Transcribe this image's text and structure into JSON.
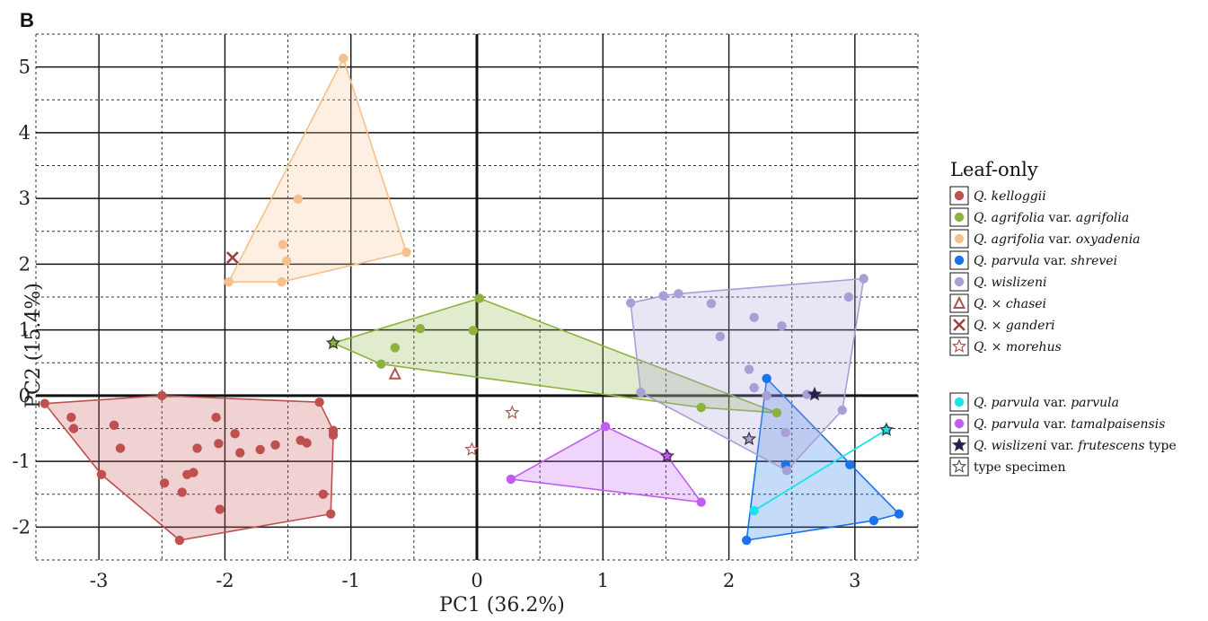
{
  "chart_data": {
    "type": "scatter",
    "panel_label": "B",
    "xlabel": "PC1 (36.2%)",
    "ylabel": "PC2 (15.4%)",
    "xlim": [
      -3.5,
      3.5
    ],
    "ylim": [
      -2.5,
      5.5
    ],
    "xticks": [
      -3,
      -2,
      -1,
      0,
      1,
      2,
      3
    ],
    "yticks": [
      -2,
      -1,
      0,
      1,
      2,
      3,
      4,
      5
    ],
    "xtick_labels": [
      "-3",
      "-2",
      "-1",
      "0",
      "1",
      "2",
      "3"
    ],
    "ytick_labels": [
      "-2",
      "-1",
      "0",
      "1",
      "2",
      "3",
      "4",
      "5"
    ],
    "legend": {
      "title": "Leaf-only",
      "groups": [
        [
          {
            "id": "kelloggii",
            "parts": [
              [
                "Q. kelloggii",
                "i"
              ]
            ],
            "color": "#c0504d",
            "marker": "circle"
          },
          {
            "id": "agrifolia",
            "parts": [
              [
                "Q. agrifolia",
                "i"
              ],
              [
                " var. ",
                "n"
              ],
              [
                "agrifolia",
                "i"
              ]
            ],
            "color": "#8db33e",
            "marker": "circle"
          },
          {
            "id": "oxyadenia",
            "parts": [
              [
                "Q. agrifolia",
                "i"
              ],
              [
                " var. ",
                "n"
              ],
              [
                "oxyadenia",
                "i"
              ]
            ],
            "color": "#f6c08c",
            "marker": "circle"
          },
          {
            "id": "shrevei",
            "parts": [
              [
                "Q. parvula",
                "i"
              ],
              [
                " var. ",
                "n"
              ],
              [
                "shrevei",
                "i"
              ]
            ],
            "color": "#1a73e8",
            "marker": "circle"
          },
          {
            "id": "wislizeni",
            "parts": [
              [
                "Q. wislizeni",
                "i"
              ]
            ],
            "color": "#a89fd6",
            "marker": "circle"
          },
          {
            "id": "chasei",
            "parts": [
              [
                "Q. × ",
                "i"
              ],
              [
                "chasei",
                "i"
              ]
            ],
            "color": "#b0554f",
            "marker": "triangle"
          },
          {
            "id": "ganderi",
            "parts": [
              [
                "Q. × ",
                "i"
              ],
              [
                "ganderi",
                "i"
              ]
            ],
            "color": "#a0403b",
            "marker": "cross"
          },
          {
            "id": "morehus",
            "parts": [
              [
                "Q. × ",
                "i"
              ],
              [
                "morehus",
                "i"
              ]
            ],
            "color": "#b0554f",
            "marker": "star-outline"
          }
        ],
        [
          {
            "id": "parvula",
            "parts": [
              [
                "Q. parvula",
                "i"
              ],
              [
                " var. ",
                "n"
              ],
              [
                "parvula",
                "i"
              ]
            ],
            "color": "#18e3ea",
            "marker": "circle"
          },
          {
            "id": "tamalpaisensis",
            "parts": [
              [
                "Q. parvula",
                "i"
              ],
              [
                " var. ",
                "n"
              ],
              [
                "tamalpaisensis",
                "i"
              ]
            ],
            "color": "#c25cf2",
            "marker": "circle"
          },
          {
            "id": "frutescens",
            "parts": [
              [
                "Q. wislizeni",
                "i"
              ],
              [
                " var. ",
                "n"
              ],
              [
                "frutescens",
                "i"
              ],
              [
                " type",
                "n"
              ]
            ],
            "color": "#2e1466",
            "marker": "star-filled"
          },
          {
            "id": "type",
            "parts": [
              [
                "type specimen",
                "n"
              ]
            ],
            "color": "#555555",
            "marker": "star-outline"
          }
        ]
      ]
    },
    "series": [
      {
        "name": "Q. kelloggii",
        "color": "#c0504d",
        "fill": "#c0504d",
        "hull": true,
        "points": [
          [
            -3.43,
            -0.12
          ],
          [
            -3.22,
            -0.33
          ],
          [
            -3.2,
            -0.5
          ],
          [
            -2.98,
            -1.2
          ],
          [
            -2.88,
            -0.45
          ],
          [
            -2.83,
            -0.8
          ],
          [
            -2.5,
            0.0
          ],
          [
            -2.48,
            -1.33
          ],
          [
            -2.36,
            -2.2
          ],
          [
            -2.34,
            -1.47
          ],
          [
            -2.3,
            -1.2
          ],
          [
            -2.25,
            -1.17
          ],
          [
            -2.22,
            -0.8
          ],
          [
            -2.07,
            -0.33
          ],
          [
            -2.05,
            -0.73
          ],
          [
            -2.04,
            -1.73
          ],
          [
            -1.92,
            -0.58
          ],
          [
            -1.88,
            -0.87
          ],
          [
            -1.72,
            -0.82
          ],
          [
            -1.6,
            -0.75
          ],
          [
            -1.4,
            -0.68
          ],
          [
            -1.35,
            -0.72
          ],
          [
            -1.25,
            -0.1
          ],
          [
            -1.22,
            -1.5
          ],
          [
            -1.16,
            -1.8
          ],
          [
            -1.14,
            -0.53
          ],
          [
            -1.14,
            -0.6
          ]
        ]
      },
      {
        "name": "Q. agrifolia var. agrifolia",
        "color": "#8db33e",
        "fill": "#8db33e",
        "hull": true,
        "points": [
          [
            -1.14,
            0.8
          ],
          [
            -0.76,
            0.48
          ],
          [
            -0.65,
            0.73
          ],
          [
            -0.45,
            1.02
          ],
          [
            -0.03,
            0.99
          ],
          [
            0.02,
            1.48
          ],
          [
            1.78,
            -0.18
          ],
          [
            2.38,
            -0.26
          ]
        ]
      },
      {
        "name": "Q. agrifolia var. oxyadenia",
        "color": "#f6c08c",
        "fill": "#f6c08c",
        "hull": true,
        "points": [
          [
            -1.97,
            1.73
          ],
          [
            -1.55,
            1.73
          ],
          [
            -1.54,
            2.3
          ],
          [
            -1.51,
            2.05
          ],
          [
            -1.42,
            2.99
          ],
          [
            -1.06,
            5.13
          ],
          [
            -0.56,
            2.18
          ]
        ]
      },
      {
        "name": "Q. parvula var. shrevei",
        "color": "#1a73e8",
        "fill": "#1a73e8",
        "hull": true,
        "points": [
          [
            2.14,
            -2.2
          ],
          [
            2.3,
            0.26
          ],
          [
            2.45,
            -1.05
          ],
          [
            2.96,
            -1.05
          ],
          [
            3.15,
            -1.9
          ],
          [
            3.35,
            -1.8
          ]
        ]
      },
      {
        "name": "Q. wislizeni",
        "color": "#a89fd6",
        "fill": "#a89fd6",
        "hull": true,
        "points": [
          [
            1.22,
            1.41
          ],
          [
            1.3,
            0.05
          ],
          [
            1.48,
            1.52
          ],
          [
            1.6,
            1.55
          ],
          [
            1.86,
            1.4
          ],
          [
            1.93,
            0.9
          ],
          [
            2.16,
            0.4
          ],
          [
            2.2,
            0.12
          ],
          [
            2.2,
            1.19
          ],
          [
            2.3,
            0.0
          ],
          [
            2.42,
            1.06
          ],
          [
            2.45,
            -0.56
          ],
          [
            2.46,
            -1.14
          ],
          [
            2.62,
            0.02
          ],
          [
            2.9,
            -0.22
          ],
          [
            2.95,
            1.5
          ],
          [
            3.07,
            1.78
          ]
        ]
      },
      {
        "name": "Q. parvula var. parvula",
        "color": "#18e3ea",
        "fill": "#18e3ea",
        "hull": false,
        "line": true,
        "points": [
          [
            2.2,
            -1.75
          ],
          [
            3.25,
            -0.52
          ]
        ]
      },
      {
        "name": "Q. parvula var. tamalpaisensis",
        "color": "#c25cf2",
        "fill": "#c25cf2",
        "hull": true,
        "points": [
          [
            0.27,
            -1.27
          ],
          [
            1.02,
            -0.47
          ],
          [
            1.51,
            -0.92
          ],
          [
            1.78,
            -1.62
          ]
        ]
      },
      {
        "name": "Q. × chasei",
        "color": "#b0554f",
        "marker": "triangle",
        "points": [
          [
            -0.65,
            0.33
          ]
        ]
      },
      {
        "name": "Q. × ganderi",
        "color": "#a0403b",
        "marker": "cross",
        "points": [
          [
            -1.94,
            2.1
          ]
        ]
      },
      {
        "name": "Q. × morehus",
        "color": "#b0554f",
        "marker": "star-outline",
        "points": [
          [
            0.28,
            -0.26
          ],
          [
            -0.04,
            -0.82
          ]
        ]
      },
      {
        "name": "Q. wislizeni var. frutescens type",
        "color": "#2e1466",
        "marker": "star-filled",
        "points": [
          [
            2.68,
            0.02
          ]
        ]
      },
      {
        "name": "type specimen (agrifolia)",
        "color": "#8db33e",
        "marker": "star-filled",
        "points": [
          [
            -1.14,
            0.8
          ]
        ]
      },
      {
        "name": "type specimen (parvula)",
        "color": "#18e3ea",
        "marker": "star-filled",
        "points": [
          [
            3.25,
            -0.52
          ]
        ]
      },
      {
        "name": "type specimen (tamalpaisensis)",
        "color": "#c25cf2",
        "marker": "star-filled",
        "points": [
          [
            1.51,
            -0.92
          ]
        ]
      },
      {
        "name": "type specimen (wislizeni)",
        "color": "#a89fd6",
        "marker": "star-filled",
        "points": [
          [
            2.16,
            -0.66
          ]
        ]
      }
    ]
  }
}
